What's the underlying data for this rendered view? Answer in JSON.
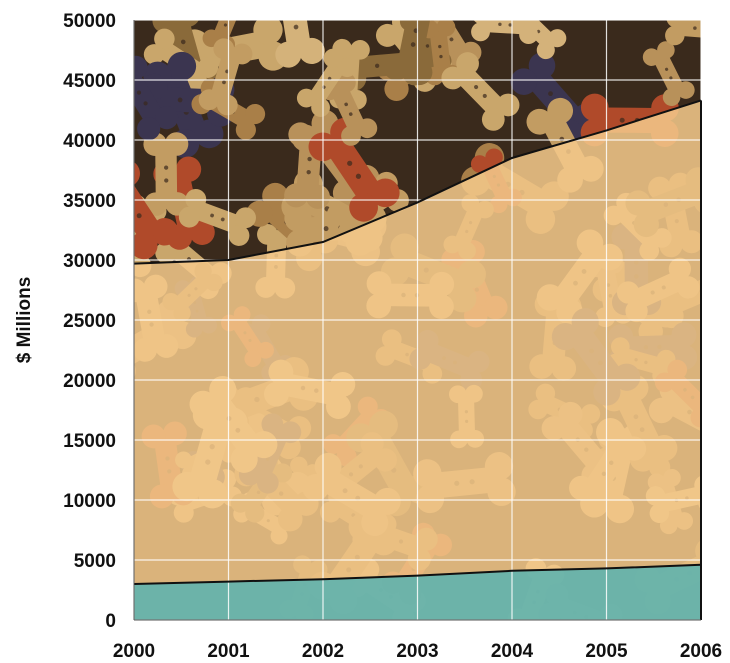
{
  "chart_data": {
    "type": "area",
    "title": "",
    "xlabel": "",
    "ylabel": "$ Millions",
    "x": [
      2000,
      2001,
      2002,
      2003,
      2004,
      2005,
      2006
    ],
    "xlim": [
      2000,
      2006
    ],
    "ylim": [
      0,
      50000
    ],
    "x_ticks": [
      "2000",
      "2001",
      "2002",
      "2003",
      "2004",
      "2005",
      "2006"
    ],
    "y_ticks": [
      "0",
      "5000",
      "10000",
      "15000",
      "20000",
      "25000",
      "30000",
      "35000",
      "40000",
      "45000",
      "50000"
    ],
    "grid": true,
    "stacking": "overlaid",
    "series": [
      {
        "values": [
          29700,
          30000,
          31500,
          34800,
          38500,
          40800,
          43300
        ],
        "color": "#f4c98a"
      },
      {
        "values": [
          3000,
          3200,
          3400,
          3700,
          4100,
          4300,
          4600
        ],
        "color": "#5fb3ae"
      }
    ],
    "background": "dog-biscuit-photo",
    "colors": {
      "line": "#111111",
      "grid": "#ffffff",
      "text": "#111111"
    }
  }
}
